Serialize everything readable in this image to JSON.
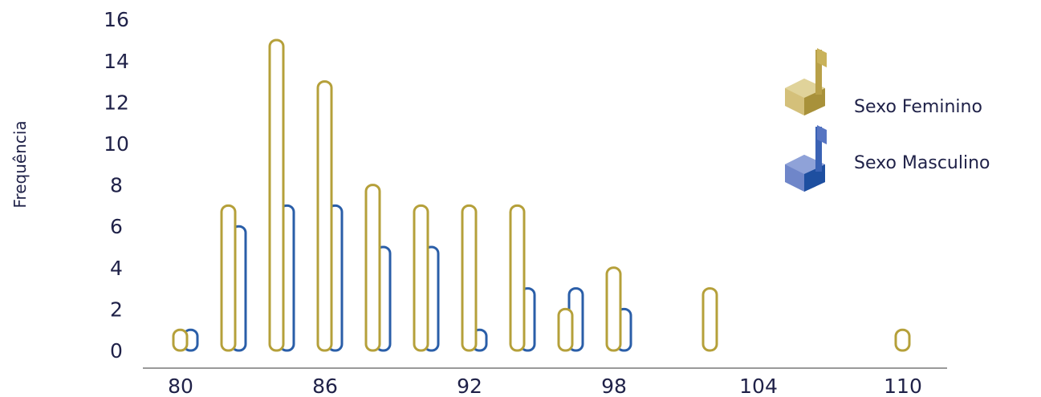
{
  "chart_data": {
    "type": "bar",
    "title": "",
    "xlabel": "",
    "ylabel": "Frequência",
    "ylim": [
      0,
      16
    ],
    "yticks": [
      0,
      2,
      4,
      6,
      8,
      10,
      12,
      14,
      16
    ],
    "xticks": [
      80,
      86,
      92,
      98,
      104,
      110
    ],
    "grid": false,
    "legend_position": "top-right",
    "series": [
      {
        "name": "Sexo Feminino",
        "color": "#b5a03a",
        "points": [
          {
            "x": 80,
            "y": 1
          },
          {
            "x": 82,
            "y": 7
          },
          {
            "x": 84,
            "y": 15
          },
          {
            "x": 86,
            "y": 13
          },
          {
            "x": 88,
            "y": 8
          },
          {
            "x": 90,
            "y": 7
          },
          {
            "x": 92,
            "y": 7
          },
          {
            "x": 94,
            "y": 7
          },
          {
            "x": 96,
            "y": 2
          },
          {
            "x": 98,
            "y": 4
          },
          {
            "x": 102,
            "y": 3
          },
          {
            "x": 110,
            "y": 1
          }
        ]
      },
      {
        "name": "Sexo Masculino",
        "color": "#2a5ea8",
        "points": [
          {
            "x": 80,
            "y": 1
          },
          {
            "x": 82,
            "y": 6
          },
          {
            "x": 84,
            "y": 7
          },
          {
            "x": 86,
            "y": 7
          },
          {
            "x": 88,
            "y": 5
          },
          {
            "x": 90,
            "y": 5
          },
          {
            "x": 92,
            "y": 1
          },
          {
            "x": 94,
            "y": 3
          },
          {
            "x": 96,
            "y": 3
          },
          {
            "x": 98,
            "y": 2
          }
        ]
      }
    ]
  },
  "legend": {
    "female_icon": "music-note-gold-icon",
    "male_icon": "music-note-blue-icon"
  }
}
